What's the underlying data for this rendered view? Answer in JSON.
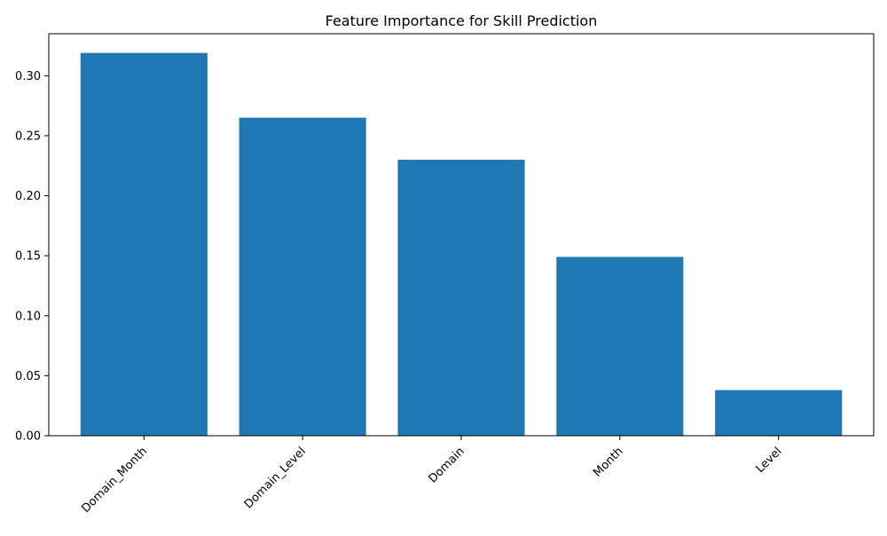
{
  "chart_data": {
    "type": "bar",
    "title": "Feature Importance for Skill Prediction",
    "xlabel": "",
    "ylabel": "",
    "categories": [
      "Domain_Month",
      "Domain_Level",
      "Domain",
      "Month",
      "Level"
    ],
    "values": [
      0.319,
      0.265,
      0.23,
      0.149,
      0.038
    ],
    "ylim": [
      0,
      0.335
    ],
    "yticks": [
      "0.00",
      "0.05",
      "0.10",
      "0.15",
      "0.20",
      "0.25",
      "0.30"
    ],
    "bar_color": "#1f77b4",
    "grid": false,
    "x_tick_rotation_deg": 45
  }
}
